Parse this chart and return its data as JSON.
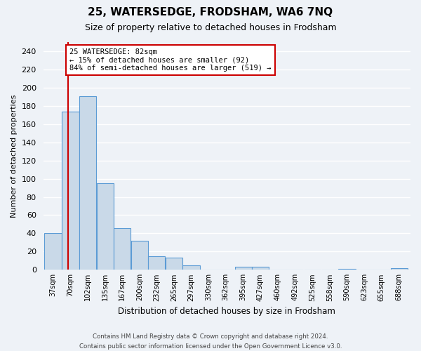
{
  "title": "25, WATERSEDGE, FRODSHAM, WA6 7NQ",
  "subtitle": "Size of property relative to detached houses in Frodsham",
  "xlabel": "Distribution of detached houses by size in Frodsham",
  "ylabel": "Number of detached properties",
  "bar_labels": [
    "37sqm",
    "70sqm",
    "102sqm",
    "135sqm",
    "167sqm",
    "200sqm",
    "232sqm",
    "265sqm",
    "297sqm",
    "330sqm",
    "362sqm",
    "395sqm",
    "427sqm",
    "460sqm",
    "492sqm",
    "525sqm",
    "558sqm",
    "590sqm",
    "623sqm",
    "655sqm",
    "688sqm"
  ],
  "bar_values": [
    40,
    174,
    191,
    95,
    46,
    32,
    15,
    13,
    5,
    0,
    0,
    3,
    3,
    0,
    0,
    0,
    0,
    1,
    0,
    0,
    2
  ],
  "bar_color": "#c9d9e8",
  "bar_edge_color": "#5b9bd5",
  "ylim": [
    0,
    250
  ],
  "yticks": [
    0,
    20,
    40,
    60,
    80,
    100,
    120,
    140,
    160,
    180,
    200,
    220,
    240
  ],
  "property_line_x": 82,
  "annotation_title": "25 WATERSEDGE: 82sqm",
  "annotation_line1": "← 15% of detached houses are smaller (92)",
  "annotation_line2": "84% of semi-detached houses are larger (519) →",
  "annotation_box_color": "#ffffff",
  "annotation_box_edge": "#cc0000",
  "vertical_line_color": "#cc0000",
  "footer_line1": "Contains HM Land Registry data © Crown copyright and database right 2024.",
  "footer_line2": "Contains public sector information licensed under the Open Government Licence v3.0.",
  "background_color": "#eef2f7",
  "grid_color": "#ffffff",
  "bin_width": 33
}
